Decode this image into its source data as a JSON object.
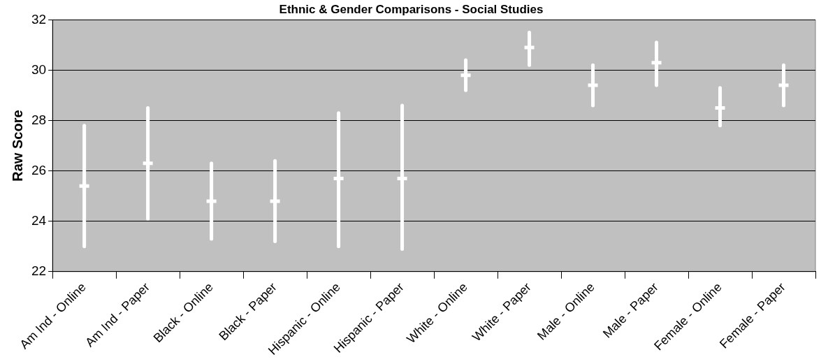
{
  "chart_data": {
    "type": "scatter",
    "title": "Ethnic & Gender Comparisons - Social Studies",
    "ylabel": "Raw Score",
    "categories": [
      "Am Ind - Online",
      "Am Ind - Paper",
      "Black - Online",
      "Black - Paper",
      "Hispanic - Online",
      "Hispanic - Paper",
      "White - Online",
      "White - Paper",
      "Male - Online",
      "Male - Paper",
      "Female - Online",
      "Female - Paper"
    ],
    "values": [
      25.4,
      26.3,
      24.8,
      24.8,
      25.7,
      25.7,
      29.8,
      30.9,
      29.4,
      30.3,
      28.5,
      29.4
    ],
    "errors": [
      [
        23.0,
        27.8
      ],
      [
        24.1,
        28.5
      ],
      [
        23.3,
        26.3
      ],
      [
        23.2,
        26.4
      ],
      [
        23.0,
        28.3
      ],
      [
        22.9,
        28.6
      ],
      [
        29.2,
        30.4
      ],
      [
        30.2,
        31.5
      ],
      [
        28.6,
        30.2
      ],
      [
        29.4,
        31.1
      ],
      [
        27.8,
        29.3
      ],
      [
        28.6,
        30.2
      ]
    ],
    "color": "#ffffff",
    "marker": "cross",
    "ylim": [
      22,
      32
    ],
    "yticks": [
      22,
      24,
      26,
      28,
      30,
      32
    ],
    "grid": "y",
    "legend": false
  }
}
